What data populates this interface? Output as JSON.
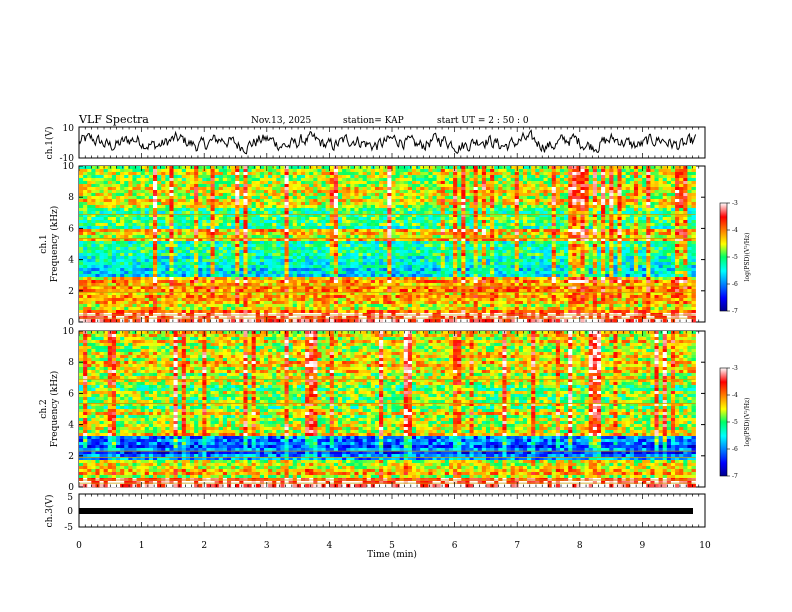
{
  "header": {
    "title": "VLF Spectra",
    "date": "Nov.13, 2025",
    "station": "station= KAP",
    "start": "start  UT =   2 : 50 : 0"
  },
  "chart_data": [
    {
      "type": "line",
      "name": "ch1-waveform",
      "ylabel": "ch.1(V)",
      "ylim": [
        -10,
        10
      ],
      "yticks": [
        "10",
        "-10"
      ],
      "xlim": [
        0,
        10
      ],
      "description_values": "noisy waveform oscillating roughly between -6 and 6 V"
    },
    {
      "type": "heatmap",
      "name": "ch1-spectrogram",
      "ylabel": "ch.1\nFrequency (kHz)",
      "ylabel_lines": [
        "ch.1",
        "Frequency (kHz)"
      ],
      "ylim": [
        0,
        10
      ],
      "yticks": [
        "0",
        "2",
        "4",
        "6",
        "8",
        "10"
      ],
      "xlim": [
        0,
        9.85
      ],
      "colorbar": {
        "label": "log(PSD)(V²/Hz)",
        "range": [
          -7,
          -3
        ],
        "ticks": [
          "-3",
          "-4",
          "-5",
          "-6",
          "-7"
        ]
      },
      "bands": [
        {
          "from": 0,
          "to": 0.6,
          "level": -3.2
        },
        {
          "from": 0.6,
          "to": 1.4,
          "level": -4.3
        },
        {
          "from": 1.4,
          "to": 2.8,
          "level": -4.2
        },
        {
          "from": 2.8,
          "to": 3.6,
          "level": -5.6
        },
        {
          "from": 3.6,
          "to": 5.2,
          "level": -5.3
        },
        {
          "from": 5.2,
          "to": 6.0,
          "level": -4.4
        },
        {
          "from": 6.0,
          "to": 7.4,
          "level": -5.2
        },
        {
          "from": 7.4,
          "to": 10,
          "level": -4.5
        }
      ]
    },
    {
      "type": "heatmap",
      "name": "ch2-spectrogram",
      "ylabel": "ch.2\nFrequency (kHz)",
      "ylabel_lines": [
        "ch.2",
        "Frequency (kHz)"
      ],
      "ylim": [
        0,
        10
      ],
      "yticks": [
        "0",
        "2",
        "4",
        "6",
        "8",
        "10"
      ],
      "xlim": [
        0,
        9.85
      ],
      "colorbar": {
        "label": "log(PSD)(V²/Hz)",
        "range": [
          -7,
          -3
        ],
        "ticks": [
          "-3",
          "-4",
          "-5",
          "-6",
          "-7"
        ]
      },
      "bands": [
        {
          "from": 0,
          "to": 0.6,
          "level": -3.3
        },
        {
          "from": 0.6,
          "to": 1.8,
          "level": -4.4
        },
        {
          "from": 1.8,
          "to": 3.2,
          "level": -6.2
        },
        {
          "from": 3.2,
          "to": 5.0,
          "level": -4.6
        },
        {
          "from": 5.0,
          "to": 6.5,
          "level": -4.8
        },
        {
          "from": 6.5,
          "to": 10,
          "level": -4.5
        }
      ]
    },
    {
      "type": "line",
      "name": "ch3-waveform",
      "ylabel": "ch.3(V)",
      "ylim": [
        -5,
        5
      ],
      "yticks": [
        "5",
        "0",
        "-5"
      ],
      "xlim": [
        0,
        9.85
      ],
      "value": 0
    }
  ],
  "xaxis": {
    "label": "Time (min)",
    "range": [
      0,
      10
    ],
    "ticks": [
      "0",
      "1",
      "2",
      "3",
      "4",
      "5",
      "6",
      "7",
      "8",
      "9",
      "10"
    ]
  }
}
